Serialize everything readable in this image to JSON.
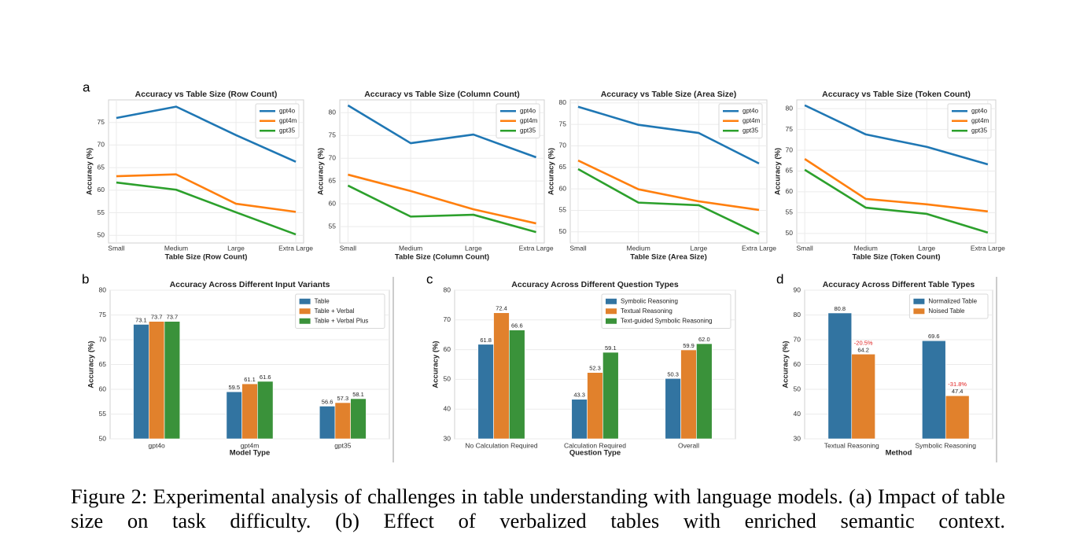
{
  "panel_labels": [
    "a",
    "b",
    "c",
    "d"
  ],
  "caption": "Figure 2: Experimental analysis of challenges in table understanding with language models. (a) Impact of table size on task difficulty. (b) Effect of verbalized tables with enriched semantic context.",
  "chart_data": [
    {
      "type": "line",
      "title": "Accuracy vs Table Size (Row Count)",
      "xlabel": "Table Size (Row Count)",
      "ylabel": "Accuracy (%)",
      "categories": [
        "Small",
        "Medium",
        "Large",
        "Extra Large"
      ],
      "series": [
        {
          "name": "gpt4o",
          "color": "#1f77b4",
          "values": [
            76.0,
            78.5,
            72.2,
            66.3
          ]
        },
        {
          "name": "gpt4m",
          "color": "#ff7f0e",
          "values": [
            63.1,
            63.5,
            57.0,
            55.2
          ]
        },
        {
          "name": "gpt35",
          "color": "#2ca02c",
          "values": [
            61.7,
            60.1,
            55.1,
            50.2
          ]
        }
      ],
      "ylim": [
        48.3,
        80
      ],
      "yticks": [
        50,
        55,
        60,
        65,
        70,
        75
      ],
      "grid": true,
      "legend": "upper right"
    },
    {
      "type": "line",
      "title": "Accuracy vs Table Size (Column Count)",
      "xlabel": "Table Size (Column Count)",
      "ylabel": "Accuracy (%)",
      "categories": [
        "Small",
        "Medium",
        "Large",
        "Extra Large"
      ],
      "series": [
        {
          "name": "gpt4o",
          "color": "#1f77b4",
          "values": [
            81.6,
            73.3,
            75.2,
            70.2
          ]
        },
        {
          "name": "gpt4m",
          "color": "#ff7f0e",
          "values": [
            66.4,
            62.8,
            58.8,
            55.7
          ]
        },
        {
          "name": "gpt35",
          "color": "#2ca02c",
          "values": [
            64.0,
            57.2,
            57.6,
            53.8
          ]
        }
      ],
      "ylim": [
        51.4,
        82.8
      ],
      "yticks": [
        55,
        60,
        65,
        70,
        75,
        80
      ],
      "grid": true,
      "legend": "upper right"
    },
    {
      "type": "line",
      "title": "Accuracy vs Table Size (Area Size)",
      "xlabel": "Table Size (Area Size)",
      "ylabel": "Accuracy (%)",
      "categories": [
        "Small",
        "Medium",
        "Large",
        "Extra Large"
      ],
      "series": [
        {
          "name": "gpt4o",
          "color": "#1f77b4",
          "values": [
            79.1,
            74.9,
            73.0,
            65.9
          ]
        },
        {
          "name": "gpt4m",
          "color": "#ff7f0e",
          "values": [
            66.6,
            59.9,
            57.1,
            55.1
          ]
        },
        {
          "name": "gpt35",
          "color": "#2ca02c",
          "values": [
            64.6,
            56.8,
            56.2,
            49.5
          ]
        }
      ],
      "ylim": [
        47.4,
        80.7
      ],
      "yticks": [
        50,
        55,
        60,
        65,
        70,
        75,
        80
      ],
      "grid": true,
      "legend": "upper right"
    },
    {
      "type": "line",
      "title": "Accuracy vs Table Size (Token Count)",
      "xlabel": "Table Size (Token Count)",
      "ylabel": "Accuracy (%)",
      "categories": [
        "Small",
        "Medium",
        "Large",
        "Extra Large"
      ],
      "series": [
        {
          "name": "gpt4o",
          "color": "#1f77b4",
          "values": [
            80.8,
            73.8,
            70.8,
            66.6
          ]
        },
        {
          "name": "gpt4m",
          "color": "#ff7f0e",
          "values": [
            67.9,
            58.3,
            57.0,
            55.3
          ]
        },
        {
          "name": "gpt35",
          "color": "#2ca02c",
          "values": [
            65.3,
            56.2,
            54.7,
            50.2
          ]
        }
      ],
      "ylim": [
        47.7,
        82.1
      ],
      "yticks": [
        50,
        55,
        60,
        65,
        70,
        75,
        80
      ],
      "grid": true,
      "legend": "upper right"
    },
    {
      "type": "bar",
      "title": "Accuracy Across Different Input Variants",
      "xlabel": "Model Type",
      "ylabel": "Accuracy (%)",
      "categories": [
        "gpt4o",
        "gpt4m",
        "gpt35"
      ],
      "series": [
        {
          "name": "Table",
          "color": "#3274a1",
          "values": [
            73.1,
            59.5,
            56.6
          ]
        },
        {
          "name": "Table + Verbal",
          "color": "#e1812c",
          "values": [
            73.7,
            61.1,
            57.3
          ]
        },
        {
          "name": "Table + Verbal Plus",
          "color": "#3a923a",
          "values": [
            73.7,
            61.6,
            58.1
          ]
        }
      ],
      "ylim": [
        50,
        80
      ],
      "yticks": [
        50,
        55,
        60,
        65,
        70,
        75,
        80
      ],
      "grid": true,
      "legend": "upper right"
    },
    {
      "type": "bar",
      "title": "Accuracy Across Different Question Types",
      "xlabel": "Question Type",
      "ylabel": "Accuracy (%)",
      "categories": [
        "No Calculation Required",
        "Calculation Required",
        "Overall"
      ],
      "series": [
        {
          "name": "Symbolic Reasoning",
          "color": "#3274a1",
          "values": [
            61.8,
            43.3,
            50.3
          ]
        },
        {
          "name": "Textual Reasoning",
          "color": "#e1812c",
          "values": [
            72.4,
            52.3,
            59.9
          ]
        },
        {
          "name": "Text-guided Symbolic Reasoning",
          "color": "#3a923a",
          "values": [
            66.6,
            59.1,
            62
          ],
          "value_labels": [
            "66.6",
            "59.1",
            "62.0"
          ]
        }
      ],
      "ylim": [
        30,
        80
      ],
      "yticks": [
        30,
        40,
        50,
        60,
        70,
        80
      ],
      "grid": true,
      "legend": "upper right"
    },
    {
      "type": "bar",
      "title": "Accuracy Across Different Table Types",
      "xlabel": "Method",
      "ylabel": "Accuracy (%)",
      "categories": [
        "Textual Reasoning",
        "Symbolic Reasoning"
      ],
      "series": [
        {
          "name": "Normalized Table",
          "color": "#3274a1",
          "values": [
            80.8,
            69.6
          ]
        },
        {
          "name": "Noised Table",
          "color": "#e1812c",
          "values": [
            64.2,
            47.4
          ],
          "annotations": [
            "-20.5%",
            "-31.8%"
          ],
          "annotation_color": "#e02020"
        }
      ],
      "ylim": [
        30,
        90
      ],
      "yticks": [
        30,
        40,
        50,
        60,
        70,
        80,
        90
      ],
      "grid": true,
      "legend": "upper right"
    }
  ]
}
